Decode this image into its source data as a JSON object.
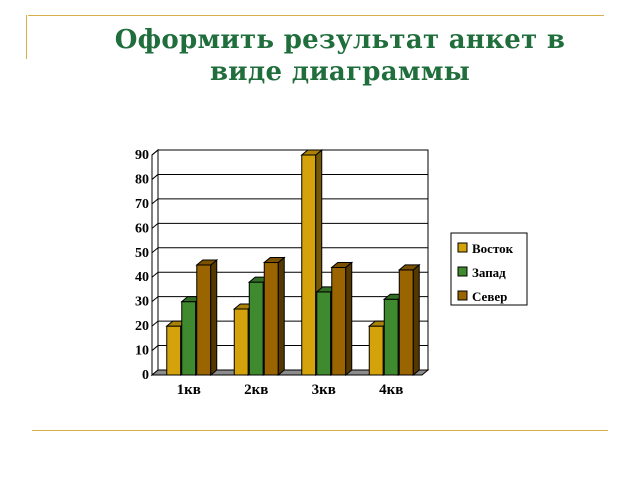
{
  "slide": {
    "title_line1": "Оформить результат анкет в",
    "title_line2": "виде диаграммы"
  },
  "chart_data": {
    "type": "bar",
    "title": "",
    "xlabel": "",
    "ylabel": "",
    "categories": [
      "1кв",
      "2кв",
      "3кв",
      "4кв"
    ],
    "ylim": [
      0,
      90
    ],
    "yticks": [
      0,
      10,
      20,
      30,
      40,
      50,
      60,
      70,
      80,
      90
    ],
    "grid": true,
    "legend_position": "right",
    "style": "3d-clustered-column",
    "series": [
      {
        "name": "Восток",
        "values": [
          20,
          27,
          90,
          20
        ],
        "color": "#d4a20a"
      },
      {
        "name": "Запад",
        "values": [
          30,
          38,
          34,
          31
        ],
        "color": "#3f8a2e"
      },
      {
        "name": "Север",
        "values": [
          45,
          46,
          44,
          43
        ],
        "color": "#9a6500"
      }
    ]
  }
}
